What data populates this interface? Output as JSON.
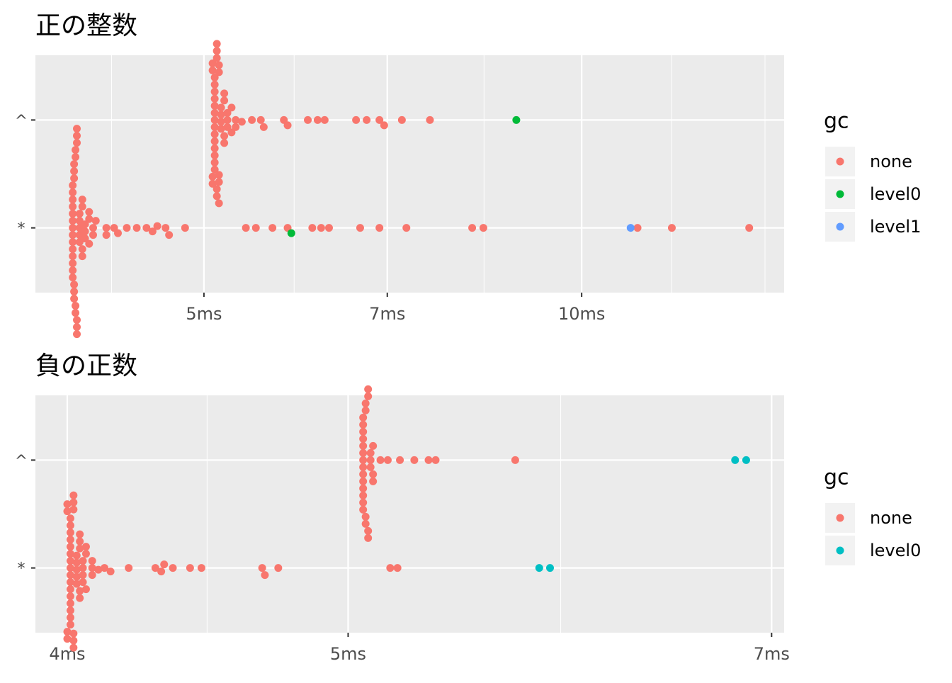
{
  "chart_data": [
    {
      "type": "scatter",
      "title": "正の整数",
      "categories": [
        "*",
        "^"
      ],
      "xscale": "log",
      "xlim": [
        3.67,
        14.5
      ],
      "xticks": [
        {
          "value": 5,
          "label": "5ms"
        },
        {
          "value": 7,
          "label": "7ms"
        },
        {
          "value": 10,
          "label": "10ms"
        }
      ],
      "xminor": [
        4.22,
        5.9,
        8.36,
        11.8,
        14.0
      ],
      "legend_title": "gc",
      "series": [
        {
          "name": "none",
          "color": "#F8766D",
          "values": [
            [
              3.93,
              3.93,
              3.93,
              3.93,
              3.93,
              3.93,
              3.93,
              3.93,
              3.93,
              3.93,
              3.93,
              3.93,
              3.93,
              3.93,
              3.94,
              3.94,
              3.94,
              3.94,
              3.94,
              3.94,
              3.95,
              3.95,
              3.95,
              3.95,
              3.96,
              3.96,
              3.96,
              3.96,
              3.96,
              3.96,
              3.98,
              3.98,
              3.98,
              3.98,
              3.98,
              4.0,
              4.0,
              4.0,
              4.0,
              4.02,
              4.02,
              4.02,
              4.05,
              4.05,
              4.05,
              4.08,
              4.08,
              4.1,
              4.18,
              4.18,
              4.24,
              4.27,
              4.34,
              4.42,
              4.5,
              4.55,
              4.59,
              4.66,
              4.69,
              4.83,
              5.4,
              5.5,
              5.67,
              5.83,
              6.1,
              6.2,
              6.29,
              6.66,
              6.9,
              7.25,
              8.18,
              8.35,
              11.08,
              11.8,
              13.6
            ],
            [
              5.1,
              5.1,
              5.1,
              5.1,
              5.1,
              5.1,
              5.1,
              5.1,
              5.1,
              5.1,
              5.1,
              5.1,
              5.1,
              5.1,
              5.08,
              5.08,
              5.08,
              5.08,
              5.12,
              5.12,
              5.12,
              5.12,
              5.12,
              5.14,
              5.14,
              5.14,
              5.14,
              5.14,
              5.16,
              5.16,
              5.16,
              5.16,
              5.19,
              5.19,
              5.19,
              5.19,
              5.22,
              5.22,
              5.22,
              5.26,
              5.26,
              5.3,
              5.3,
              5.36,
              5.46,
              5.55,
              5.58,
              5.79,
              5.83,
              6.05,
              6.16,
              6.24,
              6.61,
              6.74,
              6.9,
              6.96,
              7.19,
              7.57
            ]
          ]
        },
        {
          "name": "level0",
          "color": "#00BA38",
          "values": [
            [
              5.87
            ],
            [
              8.87
            ]
          ]
        },
        {
          "name": "level1",
          "color": "#619CFF",
          "values": [
            [
              10.94
            ],
            []
          ]
        }
      ]
    },
    {
      "type": "scatter",
      "title": "負の正数",
      "categories": [
        "*",
        "^"
      ],
      "xscale": "log",
      "xlim": [
        3.9,
        7.07
      ],
      "xticks": [
        {
          "value": 4,
          "label": "4ms"
        },
        {
          "value": 5,
          "label": "5ms"
        },
        {
          "value": 7,
          "label": "7ms"
        }
      ],
      "xminor": [
        4.47,
        5.92
      ],
      "legend_title": "gc",
      "series": [
        {
          "name": "none",
          "color": "#F8766D",
          "values": [
            [
              4.01,
              4.01,
              4.01,
              4.01,
              4.01,
              4.01,
              4.01,
              4.01,
              4.01,
              4.01,
              4.01,
              4.01,
              4.01,
              4.01,
              4.01,
              4.01,
              4.0,
              4.0,
              4.0,
              4.0,
              4.02,
              4.02,
              4.02,
              4.02,
              4.02,
              4.02,
              4.03,
              4.03,
              4.03,
              4.03,
              4.03,
              4.04,
              4.04,
              4.04,
              4.04,
              4.04,
              4.05,
              4.05,
              4.05,
              4.05,
              4.06,
              4.06,
              4.06,
              4.08,
              4.08,
              4.08,
              4.1,
              4.12,
              4.14,
              4.2,
              4.29,
              4.31,
              4.32,
              4.35,
              4.41,
              4.45,
              4.67,
              4.68,
              4.73,
              5.17,
              5.2
            ],
            [
              5.06,
              5.06,
              5.06,
              5.06,
              5.06,
              5.06,
              5.06,
              5.06,
              5.06,
              5.06,
              5.06,
              5.06,
              5.06,
              5.06,
              5.07,
              5.07,
              5.07,
              5.07,
              5.08,
              5.08,
              5.08,
              5.08,
              5.09,
              5.09,
              5.09,
              5.1,
              5.1,
              5.1,
              5.13,
              5.16,
              5.21,
              5.27,
              5.33,
              5.36,
              5.71
            ]
          ]
        },
        {
          "name": "level0",
          "color": "#00BFC4",
          "values": [
            [
              5.82,
              5.87
            ],
            [
              6.8,
              6.86
            ]
          ]
        }
      ]
    }
  ]
}
